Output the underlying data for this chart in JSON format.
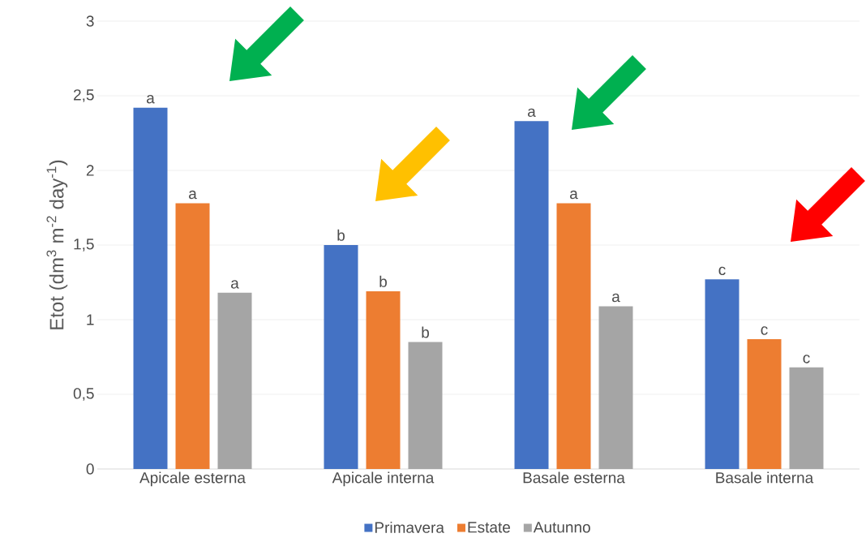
{
  "chart_data": {
    "type": "bar",
    "ylabel": "Etot (dm$^{3}$ m$^{-2}$ day$^{-1}$)",
    "categories": [
      "Apicale esterna",
      "Apicale interna",
      "Basale esterna",
      "Basale interna"
    ],
    "series": [
      {
        "name": "Primavera",
        "color": "#4472c4",
        "values": [
          2.42,
          1.5,
          2.33,
          1.27
        ]
      },
      {
        "name": "Estate",
        "color": "#ed7d31",
        "values": [
          1.78,
          1.19,
          1.78,
          0.87
        ]
      },
      {
        "name": "Autunno",
        "color": "#a5a5a5",
        "values": [
          1.18,
          0.85,
          1.09,
          0.68
        ]
      }
    ],
    "ylim": [
      0,
      3
    ],
    "yticks": [
      0,
      {
        "value": 0.5,
        "label": "0,5"
      },
      1,
      {
        "value": 1.5,
        "label": "1,5"
      },
      2,
      {
        "value": 2.5,
        "label": "2,5"
      },
      3
    ],
    "grid": "y",
    "legend": "bottom",
    "annotations": [
      "a",
      "a",
      "a",
      "b",
      "b",
      "b",
      "a",
      "a",
      "a",
      "c",
      "c",
      "c"
    ]
  }
}
